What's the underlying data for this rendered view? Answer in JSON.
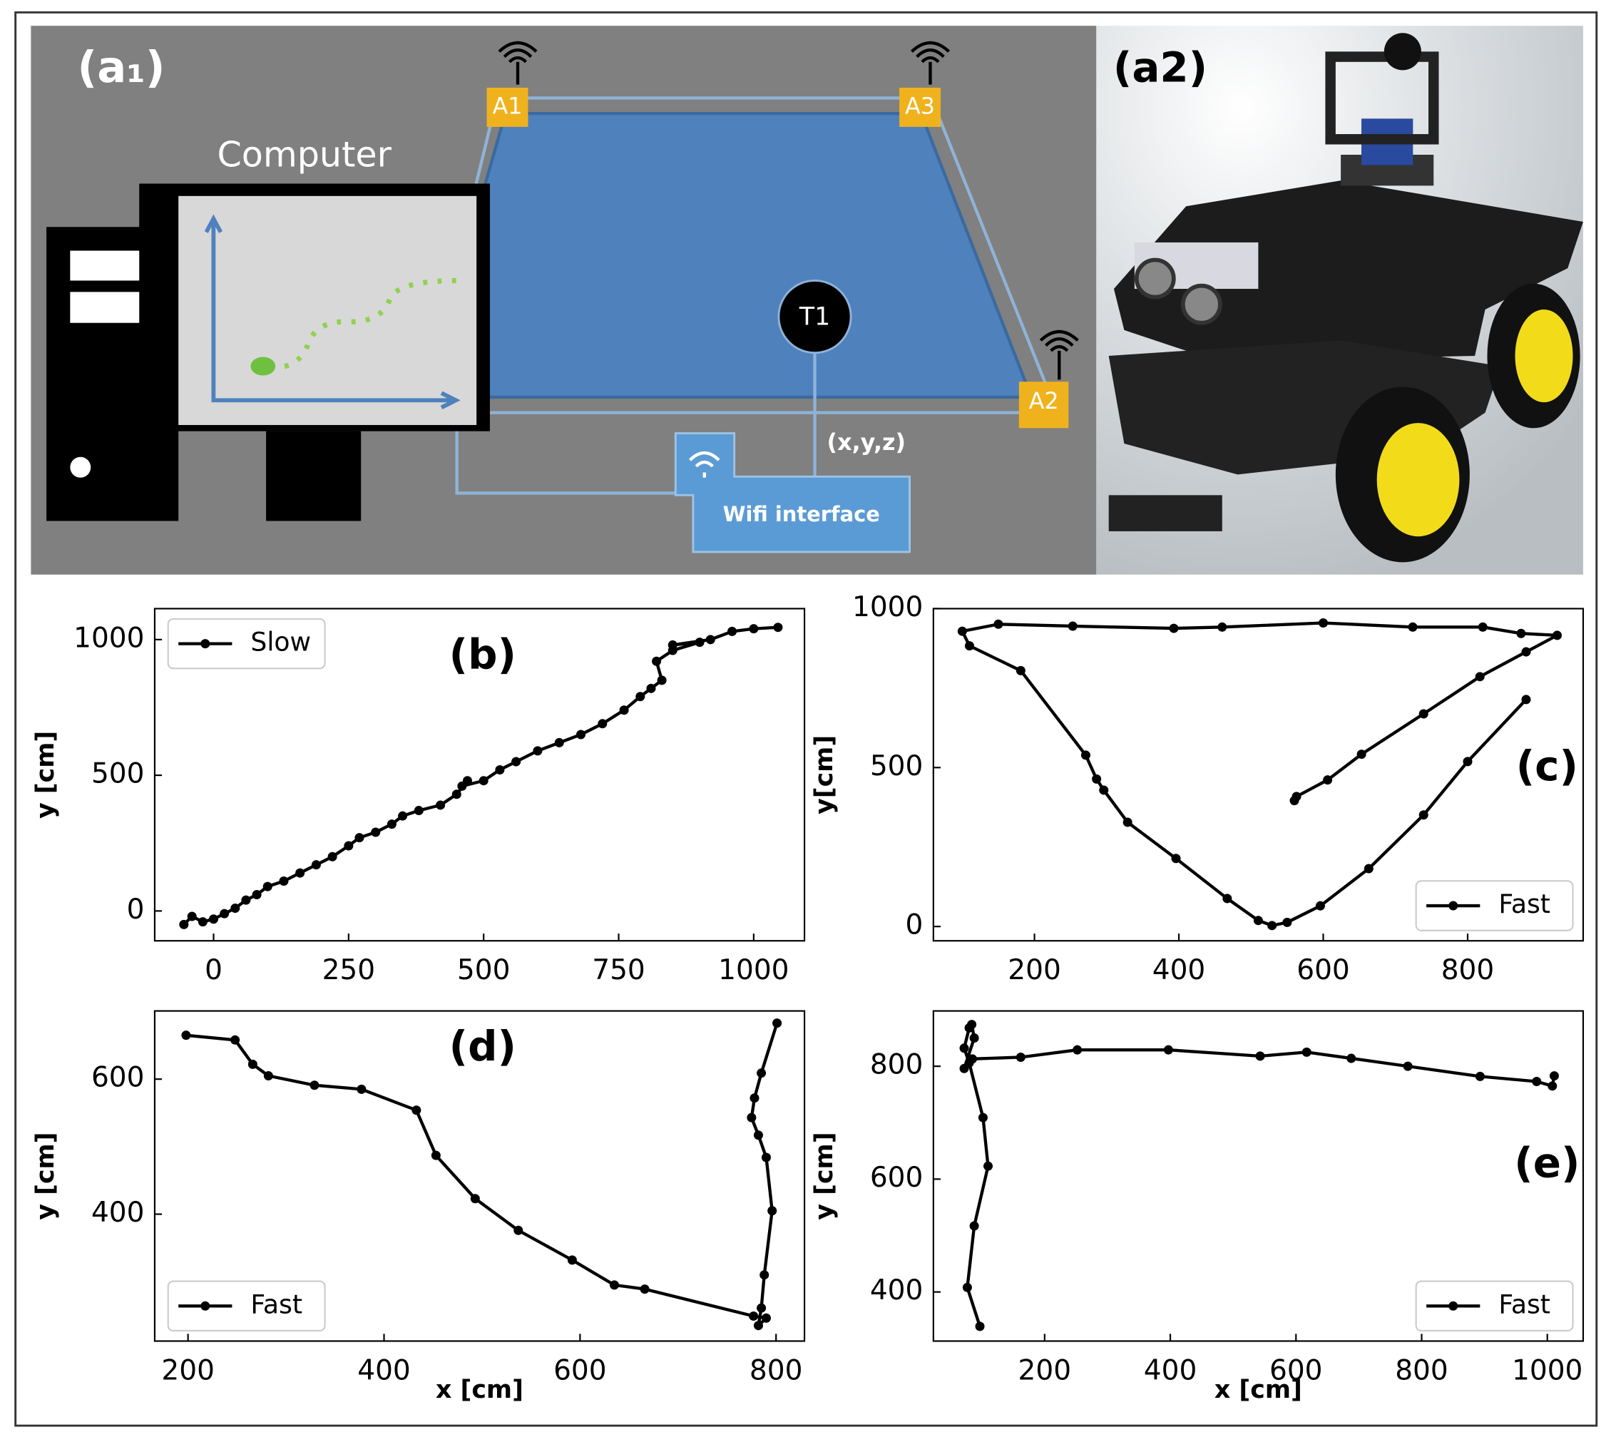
{
  "diagram": {
    "panel_label": "(a₁)",
    "computer": "Computer",
    "anchors": [
      "A1",
      "A3",
      "A2"
    ],
    "tag": "T1",
    "coordinates": "(x,y,z)",
    "interface": "Wifi interface"
  },
  "photo": {
    "panel_label": "(a2)"
  },
  "chart_data": [
    {
      "type": "line",
      "label": "(b)",
      "ylabel": "y [cm]",
      "legend": "upper-left",
      "x": [
        -55,
        -40,
        -20,
        0,
        20,
        40,
        60,
        80,
        100,
        130,
        160,
        190,
        220,
        250,
        270,
        300,
        330,
        350,
        380,
        420,
        450,
        470,
        460,
        500,
        530,
        560,
        600,
        640,
        680,
        720,
        760,
        790,
        810,
        830,
        820,
        850,
        900,
        850,
        920,
        960,
        1000,
        1045
      ],
      "series": [
        {
          "name": "Slow",
          "color": "#000000",
          "values": [
            -50,
            -20,
            -40,
            -30,
            -10,
            10,
            40,
            60,
            90,
            110,
            140,
            170,
            200,
            240,
            270,
            290,
            320,
            350,
            370,
            390,
            430,
            480,
            460,
            480,
            520,
            550,
            590,
            620,
            650,
            690,
            740,
            790,
            820,
            850,
            920,
            960,
            990,
            980,
            1000,
            1030,
            1040,
            1045
          ]
        }
      ],
      "xlim": [
        -109,
        1094
      ],
      "ylim": [
        -110,
        1114
      ],
      "xticks": [
        0,
        250,
        500,
        750,
        1000
      ],
      "yticks": [
        0,
        500,
        1000
      ]
    },
    {
      "type": "line",
      "label": "(c)",
      "ylabel": "y[cm]",
      "legend": "lower-right",
      "x": [
        881,
        800,
        739,
        663,
        596,
        550,
        529,
        510,
        467,
        396,
        329,
        296,
        286,
        271,
        181,
        110,
        100,
        150,
        253,
        393,
        460,
        600,
        724,
        821,
        874,
        924,
        881,
        817,
        739,
        653,
        606,
        563,
        560
      ],
      "series": [
        {
          "name": "Fast",
          "color": "#000000",
          "values": [
            714,
            519,
            351,
            182,
            65,
            13,
            3,
            19,
            88,
            214,
            328,
            429,
            464,
            539,
            805,
            883,
            929,
            951,
            945,
            938,
            942,
            955,
            942,
            942,
            922,
            916,
            864,
            786,
            669,
            542,
            461,
            409,
            396
          ]
        }
      ],
      "xlim": [
        60,
        960
      ],
      "ylim": [
        -45,
        1000
      ],
      "xticks": [
        200,
        400,
        600,
        800
      ],
      "yticks": [
        0,
        500,
        1000
      ]
    },
    {
      "type": "line",
      "label": "(d)",
      "xlabel": "x [cm]",
      "ylabel": "y [cm]",
      "legend": "lower-left",
      "x": [
        198,
        248,
        266,
        282,
        329,
        377,
        433,
        453,
        493,
        537,
        592,
        635,
        666,
        777,
        790,
        782,
        785,
        788,
        796,
        790,
        782,
        775,
        778,
        785,
        801
      ],
      "series": [
        {
          "name": "Fast",
          "color": "#000000",
          "values": [
            665,
            658,
            622,
            605,
            591,
            585,
            554,
            487,
            423,
            376,
            332,
            295,
            289,
            249,
            246,
            235,
            261,
            310,
            405,
            484,
            517,
            543,
            572,
            609,
            683
          ]
        }
      ],
      "xlim": [
        166,
        829
      ],
      "ylim": [
        212,
        701
      ],
      "xticks": [
        200,
        400,
        600,
        800
      ],
      "yticks": [
        400,
        600
      ]
    },
    {
      "type": "line",
      "label": "(e)",
      "xlabel": "x [cm]",
      "ylabel": "y [cm]",
      "legend": "lower-right",
      "x": [
        97,
        77,
        88,
        110,
        102,
        80,
        72,
        80,
        84,
        88,
        72,
        85,
        162,
        252,
        397,
        543,
        617,
        688,
        778,
        893,
        983,
        1008,
        1011
      ],
      "series": [
        {
          "name": "Fast",
          "color": "#000000",
          "values": [
            339,
            408,
            517,
            623,
            709,
            806,
            832,
            868,
            874,
            850,
            796,
            813,
            816,
            829,
            829,
            818,
            825,
            814,
            800,
            782,
            773,
            765,
            783
          ]
        }
      ],
      "xlim": [
        23,
        1057
      ],
      "ylim": [
        313,
        898
      ],
      "xticks": [
        200,
        400,
        600,
        800,
        1000
      ],
      "yticks": [
        400,
        600,
        800
      ]
    }
  ]
}
